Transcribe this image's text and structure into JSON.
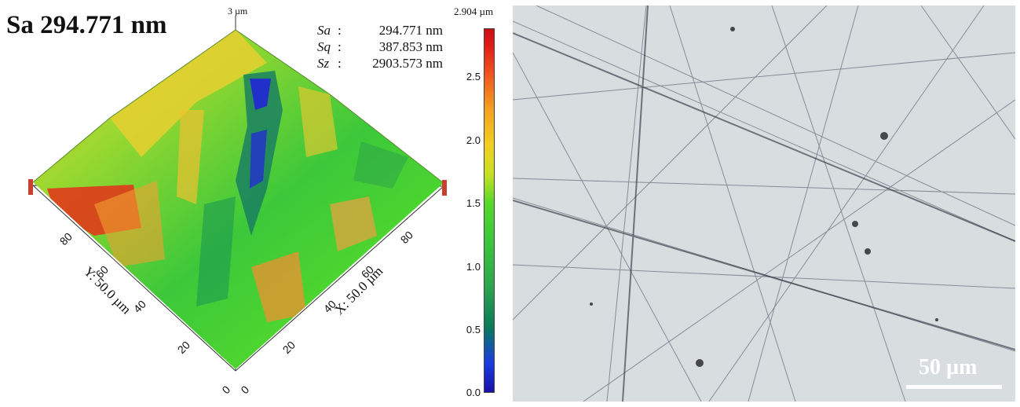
{
  "left_title": "Sa 294.771 nm",
  "stats": [
    {
      "key": "Sa",
      "sep": ":",
      "value": "294.771 nm"
    },
    {
      "key": "Sq",
      "sep": ":",
      "value": "387.853 nm"
    },
    {
      "key": "Sz",
      "sep": ":",
      "value": "2903.573 nm"
    }
  ],
  "z_axis_label": "3 µm",
  "colorbar": {
    "max_label": "2.904 µm",
    "ticks": [
      "2.5",
      "2.0",
      "1.5",
      "1.0",
      "0.5",
      "0.0"
    ]
  },
  "y_axis": {
    "label": "Y: 50.0 µm",
    "ticks": [
      "80",
      "60",
      "40",
      "20",
      "0"
    ]
  },
  "x_axis": {
    "label": "X: 50.0 µm",
    "ticks": [
      "0",
      "20",
      "40",
      "60",
      "80"
    ]
  },
  "micrograph": {
    "scale_bar_label": "50 µm"
  }
}
